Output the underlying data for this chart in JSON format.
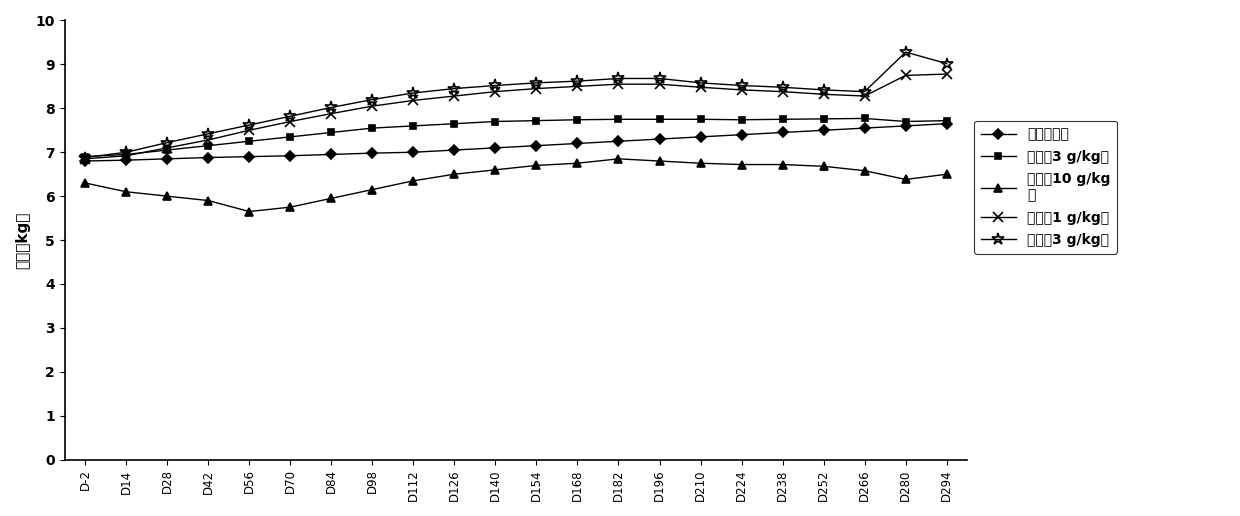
{
  "x_labels": [
    "D-2",
    "D14",
    "D28",
    "D42",
    "D56",
    "D70",
    "D84",
    "D98",
    "D112",
    "D126",
    "D140",
    "D154",
    "D168",
    "D182",
    "D196",
    "D210",
    "D224",
    "D238",
    "D252",
    "D266",
    "D280",
    "D294"
  ],
  "s1": [
    6.8,
    6.82,
    6.85,
    6.88,
    6.9,
    6.92,
    6.95,
    6.98,
    7.0,
    7.05,
    7.1,
    7.15,
    7.2,
    7.25,
    7.3,
    7.35,
    7.4,
    7.45,
    7.5,
    7.55,
    7.6,
    7.65
  ],
  "s2": [
    6.9,
    6.95,
    7.05,
    7.15,
    7.25,
    7.35,
    7.45,
    7.55,
    7.6,
    7.65,
    7.7,
    7.72,
    7.74,
    7.75,
    7.75,
    7.75,
    7.74,
    7.75,
    7.76,
    7.77,
    7.7,
    7.72
  ],
  "s3": [
    6.3,
    6.1,
    6.0,
    5.9,
    5.65,
    5.75,
    5.95,
    6.15,
    6.35,
    6.5,
    6.6,
    6.7,
    6.75,
    6.85,
    6.8,
    6.75,
    6.72,
    6.72,
    6.68,
    6.58,
    6.38,
    6.5
  ],
  "s4": [
    6.85,
    6.92,
    7.1,
    7.28,
    7.5,
    7.7,
    7.88,
    8.05,
    8.18,
    8.28,
    8.38,
    8.45,
    8.5,
    8.55,
    8.55,
    8.48,
    8.42,
    8.38,
    8.32,
    8.28,
    8.75,
    8.78
  ],
  "s5": [
    6.88,
    7.0,
    7.22,
    7.42,
    7.62,
    7.82,
    8.02,
    8.2,
    8.35,
    8.45,
    8.52,
    8.58,
    8.62,
    8.68,
    8.68,
    8.58,
    8.52,
    8.48,
    8.42,
    8.38,
    9.28,
    9.02
  ],
  "ylabel": "体重（kg）",
  "ylim": [
    0,
    10
  ],
  "yticks": [
    0,
    1,
    2,
    3,
    4,
    5,
    6,
    7,
    8,
    9,
    10
  ],
  "color": "#000000",
  "legend1": "阴性对照组",
  "legend2": "原工艺3 g/kg组",
  "legend3": "原工艺10 g/kg\n组",
  "legend4": "新工艺1 g/kg组",
  "legend5": "新工艺3 g/kg组"
}
